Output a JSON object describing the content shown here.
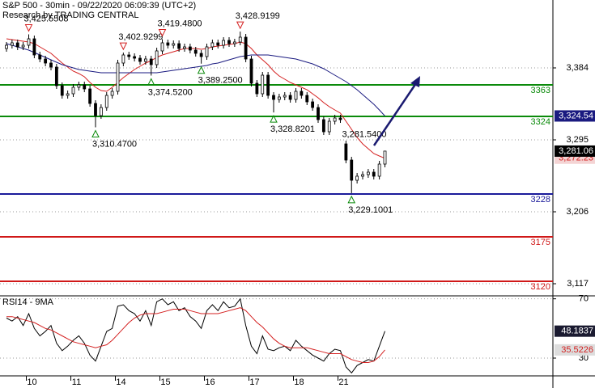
{
  "chart_data": [
    {
      "type": "candlestick",
      "title": "S&P 500 - 30min - 09/22/2020 06:09:39 (UTC+2)",
      "subtitle": "Research by TRADING CENTRAL",
      "color": "#000000",
      "open": [
        3408,
        3412,
        3415,
        3410,
        3412,
        3420,
        3400,
        3395,
        3390,
        3385,
        3362,
        3350,
        3352,
        3360,
        3363,
        3358,
        3340,
        3325,
        3335,
        3350,
        3355,
        3390,
        3400,
        3398,
        3396,
        3392,
        3395,
        3388,
        3405,
        3415,
        3412,
        3414,
        3408,
        3410,
        3406,
        3402,
        3398,
        3410,
        3415,
        3412,
        3418,
        3414,
        3416,
        3422,
        3395,
        3365,
        3352,
        3375,
        3350,
        3345,
        3348,
        3350,
        3345,
        3355,
        3350,
        3342,
        3335,
        3320,
        3305,
        3318,
        3322,
        3290,
        3270,
        3245,
        3250,
        3252,
        3255,
        3250,
        3265
      ],
      "high": [
        3416,
        3419,
        3419,
        3416,
        3425.5508,
        3424,
        3404,
        3399,
        3394,
        3389,
        3366,
        3356,
        3364,
        3367,
        3367,
        3362,
        3344,
        3339,
        3354,
        3359,
        3394,
        3402.9299,
        3404,
        3402,
        3400,
        3399,
        3399,
        3409,
        3419.48,
        3419,
        3418,
        3418,
        3414,
        3414,
        3410,
        3406,
        3414,
        3419,
        3419,
        3422,
        3422,
        3420,
        3428.9199,
        3426,
        3399,
        3369,
        3379,
        3379,
        3354,
        3352,
        3354,
        3354,
        3359,
        3359,
        3354,
        3346,
        3339,
        3324,
        3322,
        3326,
        3326,
        3294,
        3274,
        3254,
        3256,
        3259,
        3259,
        3269,
        3281.54
      ],
      "low": [
        3404,
        3408,
        3406,
        3406,
        3408,
        3396,
        3391,
        3386,
        3381,
        3358,
        3346,
        3346,
        3348,
        3356,
        3354,
        3336,
        3310.47,
        3321,
        3331,
        3346,
        3351,
        3386,
        3394,
        3392,
        3388,
        3388,
        3374.52,
        3384,
        3401,
        3408,
        3408,
        3404,
        3404,
        3402,
        3398,
        3389.25,
        3394,
        3406,
        3408,
        3408,
        3410,
        3410,
        3412,
        3391,
        3361,
        3348,
        3348,
        3346,
        3328.8201,
        3341,
        3344,
        3341,
        3341,
        3346,
        3338,
        3331,
        3316,
        3301,
        3301,
        3314,
        3316,
        3266,
        3229.1001,
        3241,
        3246,
        3248,
        3246,
        3246,
        3261
      ],
      "close": [
        3412,
        3415,
        3410,
        3412,
        3420,
        3400,
        3395,
        3390,
        3385,
        3362,
        3350,
        3352,
        3360,
        3363,
        3358,
        3340,
        3325,
        3335,
        3350,
        3355,
        3390,
        3400,
        3398,
        3396,
        3392,
        3395,
        3388,
        3405,
        3415,
        3412,
        3414,
        3408,
        3410,
        3406,
        3402,
        3398,
        3410,
        3415,
        3412,
        3418,
        3414,
        3416,
        3422,
        3395,
        3365,
        3352,
        3375,
        3350,
        3345,
        3348,
        3350,
        3345,
        3355,
        3350,
        3342,
        3335,
        3320,
        3305,
        3318,
        3322,
        3320,
        3270,
        3245,
        3250,
        3252,
        3255,
        3250,
        3265,
        3281.06
      ],
      "close_label": "3,281.06",
      "series": [
        {
          "color": "#d42020",
          "last_label": "3,272.23",
          "values": [
            3420,
            3419,
            3418,
            3417,
            3416,
            3414,
            3410,
            3406,
            3402,
            3396,
            3390,
            3385,
            3380,
            3377,
            3373,
            3366,
            3360,
            3356,
            3355,
            3360,
            3366,
            3372,
            3377,
            3382,
            3386,
            3390,
            3393,
            3397,
            3400,
            3402,
            3404,
            3406,
            3408,
            3408,
            3408,
            3407,
            3408,
            3410,
            3411,
            3412,
            3413,
            3414,
            3416,
            3414,
            3408,
            3400,
            3394,
            3388,
            3380,
            3374,
            3370,
            3366,
            3363,
            3360,
            3357,
            3352,
            3347,
            3341,
            3336,
            3332,
            3328,
            3318,
            3308,
            3298,
            3290,
            3284,
            3278,
            3275,
            3272.23
          ]
        },
        {
          "color": "#1a1a80",
          "last_label": "3,324.54",
          "values": [
            3414,
            3412,
            3410,
            3408,
            3406,
            3403,
            3400,
            3397,
            3394,
            3391,
            3388,
            3386,
            3384,
            3382,
            3381,
            3380,
            3379,
            3378,
            3378,
            3378,
            3378,
            3378,
            3378,
            3378,
            3378,
            3378,
            3378,
            3378,
            3379,
            3380,
            3381,
            3382,
            3383,
            3384,
            3385,
            3386,
            3387,
            3389,
            3390,
            3392,
            3394,
            3396,
            3398,
            3399,
            3400,
            3400,
            3400,
            3400,
            3399,
            3398,
            3397,
            3396,
            3395,
            3393,
            3391,
            3389,
            3386,
            3383,
            3379,
            3375,
            3371,
            3367,
            3362,
            3357,
            3351,
            3345,
            3339,
            3332,
            3324.54
          ]
        }
      ],
      "levels": [
        {
          "value": 3363,
          "color": "#0a8a0a"
        },
        {
          "value": 3324,
          "color": "#0a8a0a"
        },
        {
          "value": 3228,
          "color": "#1a1a9a"
        },
        {
          "value": 3175,
          "color": "#d01818"
        },
        {
          "value": 3120,
          "color": "#d01818"
        }
      ],
      "peaks": [
        {
          "value": 3425.5508,
          "label": "3,425.5508"
        },
        {
          "value": 3402.9299,
          "label": "3,402.9299"
        },
        {
          "value": 3419.48,
          "label": "3,419.4800"
        },
        {
          "value": 3428.9199,
          "label": "3,428.9199"
        }
      ],
      "troughs": [
        {
          "value": 3310.47,
          "label": "3,310.4700"
        },
        {
          "value": 3374.52,
          "label": "3,374.5200"
        },
        {
          "value": 3389.25,
          "label": "3,389.2500"
        },
        {
          "value": 3328.8201,
          "label": "3,328.8201"
        },
        {
          "value": 3229.1001,
          "label": "3,229.1001"
        }
      ],
      "high_label": {
        "value": 3281.54,
        "label": "3,281.5400"
      },
      "ylim": [
        3102,
        3468
      ],
      "yticks": [
        {
          "value": 3117,
          "label": "3,117"
        },
        {
          "value": 3206,
          "label": "3,206"
        },
        {
          "value": 3295,
          "label": "3,295"
        },
        {
          "value": 3384,
          "label": "3,384"
        }
      ],
      "grid": true
    },
    {
      "type": "line",
      "title": "RSI14 - 9MA",
      "categories": [
        null,
        null,
        null,
        null,
        "10",
        null,
        null,
        null,
        null,
        null,
        null,
        null,
        "11",
        null,
        null,
        null,
        null,
        null,
        null,
        null,
        "14",
        null,
        null,
        null,
        null,
        null,
        null,
        null,
        "15",
        null,
        null,
        null,
        null,
        null,
        null,
        null,
        "16",
        null,
        null,
        null,
        null,
        null,
        null,
        null,
        "17",
        null,
        null,
        null,
        null,
        null,
        null,
        null,
        "18",
        null,
        null,
        null,
        null,
        null,
        null,
        null,
        "21",
        null,
        null,
        null,
        null,
        null,
        null,
        null,
        null
      ],
      "series": [
        {
          "color": "#000000",
          "values": [
            57,
            55,
            58,
            52,
            60,
            50,
            45,
            48,
            52,
            40,
            35,
            38,
            42,
            45,
            40,
            32,
            28,
            38,
            48,
            50,
            65,
            66,
            62,
            60,
            55,
            62,
            52,
            68,
            70,
            66,
            68,
            62,
            64,
            58,
            55,
            50,
            62,
            66,
            62,
            68,
            64,
            65,
            70,
            52,
            38,
            33,
            45,
            36,
            35,
            37,
            38,
            35,
            42,
            38,
            35,
            32,
            30,
            28,
            33,
            36,
            35,
            24,
            20,
            25,
            27,
            29,
            28,
            38,
            48.1837
          ]
        },
        {
          "color": "#d42020",
          "values": [
            58,
            58,
            57,
            56,
            55,
            54,
            52,
            50,
            49,
            47,
            45,
            43,
            41,
            40,
            39,
            38,
            37,
            38,
            39,
            42,
            46,
            50,
            54,
            57,
            59,
            60,
            60,
            60,
            61,
            62,
            63,
            63,
            63,
            62,
            61,
            60,
            60,
            60,
            60,
            61,
            62,
            63,
            64,
            62,
            58,
            54,
            51,
            47,
            43,
            40,
            38,
            37,
            37,
            37,
            37,
            36,
            35,
            34,
            33,
            33,
            33,
            31,
            29,
            28,
            27,
            27,
            28,
            31,
            35.5226
          ]
        }
      ],
      "ylim": [
        18,
        72
      ],
      "yticks": [
        30,
        70
      ],
      "grid": true
    }
  ]
}
